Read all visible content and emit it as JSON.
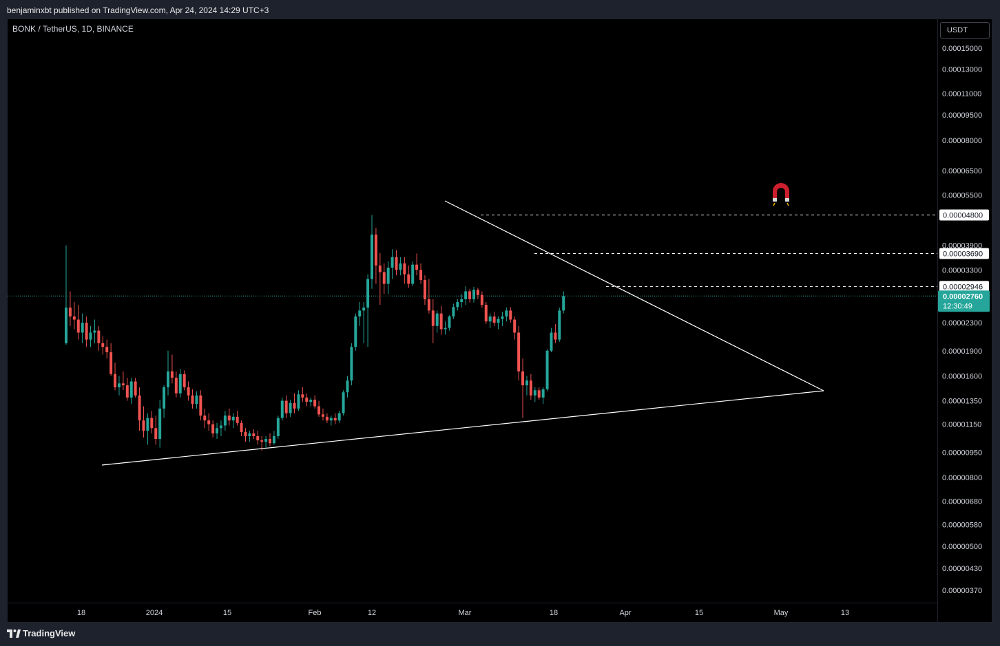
{
  "header": {
    "published_text": "benjaminxbt published on TradingView.com, Apr 24, 2024 14:29 UTC+3"
  },
  "chart_header": {
    "symbol": "BONK / TetherUS, 1D, BINANCE"
  },
  "price_axis": {
    "currency_button": "USDT"
  },
  "footer": {
    "brand": "TradingView"
  },
  "colors": {
    "up": "#26a69a",
    "down": "#ef5350",
    "background": "#000000",
    "trendline": "#ffffff"
  },
  "chart_data": {
    "type": "candlestick",
    "scale": "log",
    "y_ticks": [
      "0.00015000",
      "0.00013000",
      "0.00011000",
      "0.00009500",
      "0.00008000",
      "0.00006500",
      "0.00005500",
      "0.00003900",
      "0.00003300",
      "0.00002300",
      "0.00001900",
      "0.00001600",
      "0.00001350",
      "0.00001150",
      "0.00000950",
      "0.00000800",
      "0.00000680",
      "0.00000580",
      "0.00000500",
      "0.00000430",
      "0.00000370"
    ],
    "x_ticks": [
      "18",
      "2024",
      "15",
      "Feb",
      "12",
      "Mar",
      "18",
      "Apr",
      "15",
      "May",
      "13"
    ],
    "level_labels": [
      "0.00004800",
      "0.00003690",
      "0.00002946"
    ],
    "current_price": {
      "value": "0.00002760",
      "countdown": "12:30:49"
    },
    "candles": [
      [
        2e-05,
        3.9e-05,
        1.98e-05,
        2.55e-05
      ],
      [
        2.55e-05,
        2.85e-05,
        2.25e-05,
        2.4e-05
      ],
      [
        2.4e-05,
        2.65e-05,
        2.2e-05,
        2.35e-05
      ],
      [
        2.35e-05,
        2.6e-05,
        2.05e-05,
        2.15e-05
      ],
      [
        2.15e-05,
        2.45e-05,
        2e-05,
        2.3e-05
      ],
      [
        2.3e-05,
        2.4e-05,
        1.95e-05,
        2.05e-05
      ],
      [
        2.05e-05,
        2.25e-05,
        1.95e-05,
        2.15e-05
      ],
      [
        2.15e-05,
        2.35e-05,
        2e-05,
        2.18e-05
      ],
      [
        2.18e-05,
        2.25e-05,
        1.9e-05,
        2e-05
      ],
      [
        2e-05,
        2.1e-05,
        1.85e-05,
        1.95e-05
      ],
      [
        1.95e-05,
        2.05e-05,
        1.8e-05,
        1.88e-05
      ],
      [
        1.88e-05,
        2e-05,
        1.6e-05,
        1.62e-05
      ],
      [
        1.62e-05,
        1.75e-05,
        1.45e-05,
        1.48e-05
      ],
      [
        1.48e-05,
        1.6e-05,
        1.4e-05,
        1.52e-05
      ],
      [
        1.52e-05,
        1.65e-05,
        1.45e-05,
        1.5e-05
      ],
      [
        1.5e-05,
        1.58e-05,
        1.35e-05,
        1.38e-05
      ],
      [
        1.38e-05,
        1.58e-05,
        1.32e-05,
        1.54e-05
      ],
      [
        1.54e-05,
        1.58e-05,
        1.38e-05,
        1.4e-05
      ],
      [
        1.4e-05,
        1.48e-05,
        1.1e-05,
        1.18e-05
      ],
      [
        1.18e-05,
        1.3e-05,
        1.05e-05,
        1.1e-05
      ],
      [
        1.1e-05,
        1.24e-05,
        1e-05,
        1.2e-05
      ],
      [
        1.2e-05,
        1.26e-05,
        1.08e-05,
        1.12e-05
      ],
      [
        1.12e-05,
        1.22e-05,
        1e-05,
        1.04e-05
      ],
      [
        1.04e-05,
        1.36e-05,
        9.8e-06,
        1.28e-05
      ],
      [
        1.28e-05,
        1.5e-05,
        1.2e-05,
        1.48e-05
      ],
      [
        1.48e-05,
        1.9e-05,
        1.4e-05,
        1.65e-05
      ],
      [
        1.65e-05,
        1.85e-05,
        1.52e-05,
        1.58e-05
      ],
      [
        1.58e-05,
        1.65e-05,
        1.38e-05,
        1.42e-05
      ],
      [
        1.42e-05,
        1.68e-05,
        1.38e-05,
        1.62e-05
      ],
      [
        1.62e-05,
        1.66e-05,
        1.45e-05,
        1.48e-05
      ],
      [
        1.48e-05,
        1.54e-05,
        1.35e-05,
        1.4e-05
      ],
      [
        1.4e-05,
        1.46e-05,
        1.28e-05,
        1.32e-05
      ],
      [
        1.32e-05,
        1.44e-05,
        1.28e-05,
        1.4e-05
      ],
      [
        1.4e-05,
        1.45e-05,
        1.18e-05,
        1.22e-05
      ],
      [
        1.22e-05,
        1.28e-05,
        1.12e-05,
        1.18e-05
      ],
      [
        1.18e-05,
        1.24e-05,
        1.1e-05,
        1.15e-05
      ],
      [
        1.15e-05,
        1.18e-05,
        1.05e-05,
        1.08e-05
      ],
      [
        1.08e-05,
        1.16e-05,
        1.04e-05,
        1.12e-05
      ],
      [
        1.12e-05,
        1.18e-05,
        1.06e-05,
        1.14e-05
      ],
      [
        1.14e-05,
        1.26e-05,
        1.1e-05,
        1.22e-05
      ],
      [
        1.22e-05,
        1.28e-05,
        1.14e-05,
        1.18e-05
      ],
      [
        1.18e-05,
        1.24e-05,
        1.12e-05,
        1.21e-05
      ],
      [
        1.21e-05,
        1.26e-05,
        1.14e-05,
        1.16e-05
      ],
      [
        1.16e-05,
        1.18e-05,
        1.06e-05,
        1.09e-05
      ],
      [
        1.09e-05,
        1.12e-05,
        1.02e-05,
        1.06e-05
      ],
      [
        1.06e-05,
        1.1e-05,
        1.02e-05,
        1.08e-05
      ],
      [
        1.08e-05,
        1.11e-05,
        1.04e-05,
        1.06e-05
      ],
      [
        1.06e-05,
        1.1e-05,
        1e-05,
        1.03e-05
      ],
      [
        1.03e-05,
        1.06e-05,
        9.6e-06,
        1.02e-05
      ],
      [
        1.02e-05,
        1.06e-05,
        9.8e-06,
        1.04e-05
      ],
      [
        1.04e-05,
        1.08e-05,
        9.9e-06,
        1.01e-05
      ],
      [
        1.01e-05,
        1.1e-05,
        1e-05,
        1.06e-05
      ],
      [
        1.06e-05,
        1.22e-05,
        1.04e-05,
        1.2e-05
      ],
      [
        1.2e-05,
        1.38e-05,
        1.18e-05,
        1.35e-05
      ],
      [
        1.35e-05,
        1.4e-05,
        1.2e-05,
        1.24e-05
      ],
      [
        1.24e-05,
        1.36e-05,
        1.21e-05,
        1.33e-05
      ],
      [
        1.33e-05,
        1.42e-05,
        1.24e-05,
        1.28e-05
      ],
      [
        1.28e-05,
        1.45e-05,
        1.26e-05,
        1.41e-05
      ],
      [
        1.41e-05,
        1.48e-05,
        1.34e-05,
        1.38e-05
      ],
      [
        1.38e-05,
        1.42e-05,
        1.3e-05,
        1.34e-05
      ],
      [
        1.34e-05,
        1.38e-05,
        1.3e-05,
        1.36e-05
      ],
      [
        1.36e-05,
        1.4e-05,
        1.28e-05,
        1.3e-05
      ],
      [
        1.3e-05,
        1.35e-05,
        1.21e-05,
        1.23e-05
      ],
      [
        1.23e-05,
        1.28e-05,
        1.18e-05,
        1.21e-05
      ],
      [
        1.21e-05,
        1.24e-05,
        1.16e-05,
        1.18e-05
      ],
      [
        1.18e-05,
        1.22e-05,
        1.14e-05,
        1.2e-05
      ],
      [
        1.2e-05,
        1.24e-05,
        1.15e-05,
        1.18e-05
      ],
      [
        1.18e-05,
        1.26e-05,
        1.16e-05,
        1.24e-05
      ],
      [
        1.24e-05,
        1.45e-05,
        1.22e-05,
        1.43e-05
      ],
      [
        1.43e-05,
        1.6e-05,
        1.38e-05,
        1.55e-05
      ],
      [
        1.55e-05,
        2e-05,
        1.5e-05,
        1.95e-05
      ],
      [
        1.95e-05,
        2.45e-05,
        1.9e-05,
        2.4e-05
      ],
      [
        2.4e-05,
        2.65e-05,
        2.25e-05,
        2.5e-05
      ],
      [
        2.5e-05,
        2.65e-05,
        2e-05,
        2.55e-05
      ],
      [
        2.55e-05,
        3.2e-05,
        1.95e-05,
        3.1e-05
      ],
      [
        3.1e-05,
        4.8e-05,
        2.9e-05,
        4.2e-05
      ],
      [
        4.2e-05,
        4.4e-05,
        3e-05,
        3.4e-05
      ],
      [
        3.4e-05,
        3.7e-05,
        2.6e-05,
        3.25e-05
      ],
      [
        3.25e-05,
        3.45e-05,
        2.8e-05,
        3e-05
      ],
      [
        3e-05,
        3.5e-05,
        2.8e-05,
        3.35e-05
      ],
      [
        3.35e-05,
        3.8e-05,
        3.1e-05,
        3.6e-05
      ],
      [
        3.6e-05,
        3.78e-05,
        3.18e-05,
        3.3e-05
      ],
      [
        3.3e-05,
        3.6e-05,
        3.18e-05,
        3.45e-05
      ],
      [
        3.45e-05,
        3.6e-05,
        3e-05,
        3.2e-05
      ],
      [
        3.2e-05,
        3.4e-05,
        2.92e-05,
        3e-05
      ],
      [
        3e-05,
        3.5e-05,
        2.95e-05,
        3.42e-05
      ],
      [
        3.42e-05,
        3.69e-05,
        3.18e-05,
        3.3e-05
      ],
      [
        3.3e-05,
        3.45e-05,
        3e-05,
        3.08e-05
      ],
      [
        3.08e-05,
        3.18e-05,
        2.6e-05,
        2.7e-05
      ],
      [
        2.7e-05,
        3.1e-05,
        2.45e-05,
        2.5e-05
      ],
      [
        2.5e-05,
        2.7e-05,
        2e-05,
        2.25e-05
      ],
      [
        2.25e-05,
        2.5e-05,
        2.15e-05,
        2.45e-05
      ],
      [
        2.45e-05,
        2.58e-05,
        2.12e-05,
        2.2e-05
      ],
      [
        2.2e-05,
        2.32e-05,
        2.12e-05,
        2.22e-05
      ],
      [
        2.22e-05,
        2.42e-05,
        2.18e-05,
        2.4e-05
      ],
      [
        2.4e-05,
        2.62e-05,
        2.36e-05,
        2.56e-05
      ],
      [
        2.56e-05,
        2.7e-05,
        2.5e-05,
        2.65e-05
      ],
      [
        2.65e-05,
        2.8e-05,
        2.55e-05,
        2.7e-05
      ],
      [
        2.7e-05,
        2.95e-05,
        2.6e-05,
        2.85e-05
      ],
      [
        2.85e-05,
        2.9e-05,
        2.64e-05,
        2.7e-05
      ],
      [
        2.7e-05,
        2.94e-05,
        2.64e-05,
        2.88e-05
      ],
      [
        2.88e-05,
        2.92e-05,
        2.7e-05,
        2.78e-05
      ],
      [
        2.78e-05,
        2.85e-05,
        2.55e-05,
        2.6e-05
      ],
      [
        2.6e-05,
        2.65e-05,
        2.28e-05,
        2.32e-05
      ],
      [
        2.32e-05,
        2.45e-05,
        2.22e-05,
        2.4e-05
      ],
      [
        2.4e-05,
        2.48e-05,
        2.25e-05,
        2.3e-05
      ],
      [
        2.3e-05,
        2.4e-05,
        2.2e-05,
        2.36e-05
      ],
      [
        2.36e-05,
        2.48e-05,
        2.25e-05,
        2.4e-05
      ],
      [
        2.4e-05,
        2.55e-05,
        2.32e-05,
        2.5e-05
      ],
      [
        2.5e-05,
        2.56e-05,
        2.3e-05,
        2.35e-05
      ],
      [
        2.35e-05,
        2.4e-05,
        2.05e-05,
        2.15e-05
      ],
      [
        2.15e-05,
        2.25e-05,
        1.55e-05,
        1.65e-05
      ],
      [
        1.65e-05,
        1.8e-05,
        1.2e-05,
        1.5e-05
      ],
      [
        1.5e-05,
        1.6e-05,
        1.4e-05,
        1.55e-05
      ],
      [
        1.55e-05,
        1.62e-05,
        1.36e-05,
        1.4e-05
      ],
      [
        1.4e-05,
        1.48e-05,
        1.34e-05,
        1.45e-05
      ],
      [
        1.45e-05,
        1.48e-05,
        1.36e-05,
        1.38e-05
      ],
      [
        1.38e-05,
        1.48e-05,
        1.32e-05,
        1.46e-05
      ],
      [
        1.46e-05,
        1.92e-05,
        1.44e-05,
        1.9e-05
      ],
      [
        1.9e-05,
        2.22e-05,
        1.88e-05,
        2.15e-05
      ],
      [
        2.15e-05,
        2.28e-05,
        2e-05,
        2.05e-05
      ],
      [
        2.05e-05,
        2.55e-05,
        2.02e-05,
        2.5e-05
      ],
      [
        2.5e-05,
        2.85e-05,
        2.45e-05,
        2.76e-05
      ]
    ]
  }
}
